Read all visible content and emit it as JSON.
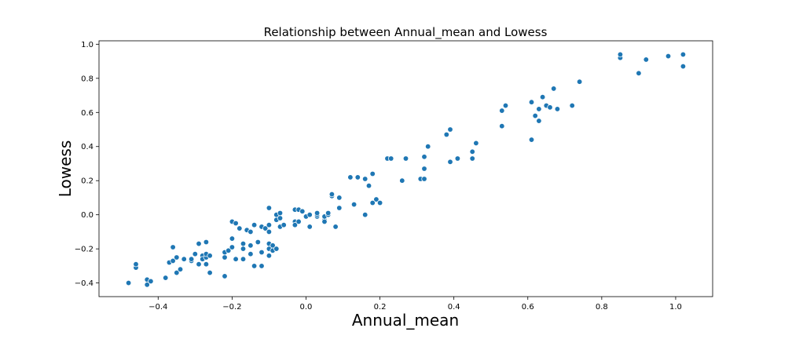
{
  "chart_data": {
    "type": "scatter",
    "title": "Relationship between Annual_mean and Lowess",
    "xlabel": "Annual_mean",
    "ylabel": "Lowess",
    "xlim": [
      -0.56,
      1.1
    ],
    "ylim": [
      -0.48,
      1.02
    ],
    "xticks": [
      -0.4,
      -0.2,
      0.0,
      0.2,
      0.4,
      0.6,
      0.8,
      1.0
    ],
    "xtick_labels": [
      "−0.4",
      "−0.2",
      "0.0",
      "0.2",
      "0.4",
      "0.6",
      "0.8",
      "1.0"
    ],
    "yticks": [
      -0.4,
      -0.2,
      0.0,
      0.2,
      0.4,
      0.6,
      0.8,
      1.0
    ],
    "ytick_labels": [
      "−0.4",
      "−0.2",
      "0.0",
      "0.2",
      "0.4",
      "0.6",
      "0.8",
      "1.0"
    ],
    "grid": false,
    "color": "#1f77b4",
    "points": [
      [
        -0.48,
        -0.4
      ],
      [
        -0.46,
        -0.31
      ],
      [
        -0.46,
        -0.29
      ],
      [
        -0.43,
        -0.41
      ],
      [
        -0.43,
        -0.38
      ],
      [
        -0.42,
        -0.39
      ],
      [
        -0.38,
        -0.37
      ],
      [
        -0.37,
        -0.28
      ],
      [
        -0.36,
        -0.19
      ],
      [
        -0.36,
        -0.27
      ],
      [
        -0.35,
        -0.34
      ],
      [
        -0.35,
        -0.25
      ],
      [
        -0.34,
        -0.32
      ],
      [
        -0.33,
        -0.26
      ],
      [
        -0.31,
        -0.27
      ],
      [
        -0.31,
        -0.26
      ],
      [
        -0.3,
        -0.23
      ],
      [
        -0.29,
        -0.29
      ],
      [
        -0.29,
        -0.17
      ],
      [
        -0.28,
        -0.24
      ],
      [
        -0.28,
        -0.26
      ],
      [
        -0.27,
        -0.25
      ],
      [
        -0.27,
        -0.23
      ],
      [
        -0.27,
        -0.16
      ],
      [
        -0.27,
        -0.29
      ],
      [
        -0.26,
        -0.24
      ],
      [
        -0.26,
        -0.34
      ],
      [
        -0.22,
        -0.36
      ],
      [
        -0.22,
        -0.25
      ],
      [
        -0.22,
        -0.22
      ],
      [
        -0.21,
        -0.21
      ],
      [
        -0.2,
        -0.19
      ],
      [
        -0.2,
        -0.14
      ],
      [
        -0.2,
        -0.04
      ],
      [
        -0.19,
        -0.26
      ],
      [
        -0.19,
        -0.05
      ],
      [
        -0.18,
        -0.08
      ],
      [
        -0.17,
        -0.17
      ],
      [
        -0.17,
        -0.26
      ],
      [
        -0.17,
        -0.2
      ],
      [
        -0.16,
        -0.09
      ],
      [
        -0.15,
        -0.23
      ],
      [
        -0.15,
        -0.1
      ],
      [
        -0.15,
        -0.18
      ],
      [
        -0.14,
        -0.3
      ],
      [
        -0.14,
        -0.06
      ],
      [
        -0.13,
        -0.16
      ],
      [
        -0.12,
        -0.3
      ],
      [
        -0.12,
        -0.22
      ],
      [
        -0.12,
        -0.07
      ],
      [
        -0.11,
        -0.08
      ],
      [
        -0.1,
        -0.06
      ],
      [
        -0.1,
        -0.1
      ],
      [
        -0.1,
        -0.2
      ],
      [
        -0.1,
        -0.24
      ],
      [
        -0.1,
        -0.17
      ],
      [
        -0.1,
        0.04
      ],
      [
        -0.09,
        -0.18
      ],
      [
        -0.09,
        -0.21
      ],
      [
        -0.08,
        -0.03
      ],
      [
        -0.08,
        -0.2
      ],
      [
        -0.08,
        0.0
      ],
      [
        -0.07,
        -0.07
      ],
      [
        -0.07,
        0.01
      ],
      [
        -0.07,
        -0.02
      ],
      [
        -0.06,
        -0.06
      ],
      [
        -0.03,
        0.03
      ],
      [
        -0.03,
        -0.04
      ],
      [
        -0.03,
        -0.06
      ],
      [
        -0.02,
        -0.04
      ],
      [
        -0.02,
        0.03
      ],
      [
        -0.01,
        0.02
      ],
      [
        0.0,
        -0.01
      ],
      [
        0.01,
        0.0
      ],
      [
        0.01,
        -0.07
      ],
      [
        0.03,
        -0.01
      ],
      [
        0.03,
        0.0
      ],
      [
        0.03,
        0.01
      ],
      [
        0.05,
        -0.03
      ],
      [
        0.05,
        -0.04
      ],
      [
        0.05,
        -0.01
      ],
      [
        0.06,
        0.0
      ],
      [
        0.06,
        0.01
      ],
      [
        0.07,
        0.11
      ],
      [
        0.07,
        0.12
      ],
      [
        0.08,
        -0.07
      ],
      [
        0.09,
        0.04
      ],
      [
        0.09,
        0.1
      ],
      [
        0.12,
        0.22
      ],
      [
        0.13,
        0.06
      ],
      [
        0.14,
        0.22
      ],
      [
        0.16,
        0.0
      ],
      [
        0.16,
        0.21
      ],
      [
        0.17,
        0.17
      ],
      [
        0.18,
        0.24
      ],
      [
        0.18,
        0.07
      ],
      [
        0.19,
        0.09
      ],
      [
        0.2,
        0.07
      ],
      [
        0.22,
        0.33
      ],
      [
        0.23,
        0.33
      ],
      [
        0.26,
        0.2
      ],
      [
        0.27,
        0.33
      ],
      [
        0.31,
        0.21
      ],
      [
        0.32,
        0.21
      ],
      [
        0.32,
        0.27
      ],
      [
        0.32,
        0.34
      ],
      [
        0.33,
        0.4
      ],
      [
        0.38,
        0.47
      ],
      [
        0.39,
        0.5
      ],
      [
        0.39,
        0.31
      ],
      [
        0.41,
        0.33
      ],
      [
        0.45,
        0.33
      ],
      [
        0.45,
        0.37
      ],
      [
        0.46,
        0.42
      ],
      [
        0.53,
        0.61
      ],
      [
        0.53,
        0.52
      ],
      [
        0.54,
        0.64
      ],
      [
        0.61,
        0.66
      ],
      [
        0.61,
        0.44
      ],
      [
        0.62,
        0.58
      ],
      [
        0.63,
        0.62
      ],
      [
        0.63,
        0.55
      ],
      [
        0.64,
        0.69
      ],
      [
        0.65,
        0.64
      ],
      [
        0.66,
        0.63
      ],
      [
        0.67,
        0.74
      ],
      [
        0.68,
        0.62
      ],
      [
        0.72,
        0.64
      ],
      [
        0.74,
        0.78
      ],
      [
        0.85,
        0.92
      ],
      [
        0.85,
        0.94
      ],
      [
        0.9,
        0.83
      ],
      [
        0.92,
        0.91
      ],
      [
        0.98,
        0.93
      ],
      [
        1.02,
        0.94
      ],
      [
        1.02,
        0.87
      ]
    ]
  }
}
